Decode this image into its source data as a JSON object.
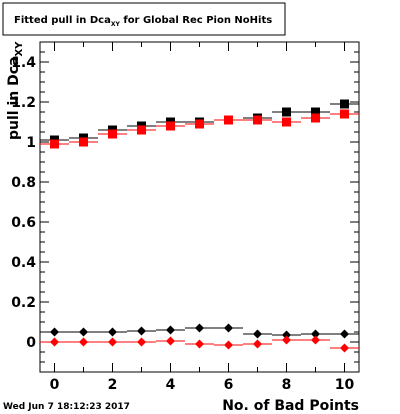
{
  "title": {
    "prefix": "Fitted pull in Dca",
    "subscript": "XY",
    "suffix": " for Global Rec Pion NoHits"
  },
  "footer": {
    "timestamp": "Wed Jun  7 18:12:23 2017"
  },
  "chart_data": {
    "type": "scatter",
    "xlabel": "No. of Bad Points",
    "ylabel": "pull in Dca",
    "ylabel_sub": "XY",
    "xlim": [
      -0.5,
      10.5
    ],
    "ylim": [
      -0.15,
      1.5
    ],
    "x_ticks": [
      0,
      2,
      4,
      6,
      8,
      10
    ],
    "y_ticks": [
      0,
      0.2,
      0.4,
      0.6,
      0.8,
      1,
      1.2,
      1.4
    ],
    "y_tick_labels": [
      "0",
      "0.2",
      "0.4",
      "0.6",
      "0.8",
      "1",
      "1.2",
      "1.4"
    ],
    "grid": false,
    "colors": {
      "black": "#000000",
      "red": "#ff0000"
    },
    "series": [
      {
        "marker": "square",
        "color": "#000000",
        "x": [
          0,
          1,
          2,
          3,
          4,
          5,
          6,
          7,
          8,
          9,
          10
        ],
        "y": [
          1.01,
          1.02,
          1.06,
          1.08,
          1.1,
          1.1,
          1.11,
          1.12,
          1.15,
          1.15,
          1.19
        ]
      },
      {
        "marker": "square",
        "color": "#ff0000",
        "x": [
          0,
          1,
          2,
          3,
          4,
          5,
          6,
          7,
          8,
          9,
          10
        ],
        "y": [
          0.99,
          1.0,
          1.04,
          1.06,
          1.08,
          1.09,
          1.11,
          1.11,
          1.1,
          1.12,
          1.14
        ]
      },
      {
        "marker": "diamond",
        "color": "#000000",
        "x": [
          0,
          1,
          2,
          3,
          4,
          5,
          6,
          7,
          8,
          9,
          10
        ],
        "y": [
          0.05,
          0.05,
          0.05,
          0.055,
          0.06,
          0.07,
          0.07,
          0.04,
          0.035,
          0.04,
          0.04
        ]
      },
      {
        "marker": "diamond",
        "color": "#ff0000",
        "x": [
          0,
          1,
          2,
          3,
          4,
          5,
          6,
          7,
          8,
          9,
          10
        ],
        "y": [
          0.0,
          0.0,
          0.0,
          0.0,
          0.005,
          -0.01,
          -0.015,
          -0.01,
          0.01,
          0.01,
          -0.03
        ]
      }
    ]
  }
}
